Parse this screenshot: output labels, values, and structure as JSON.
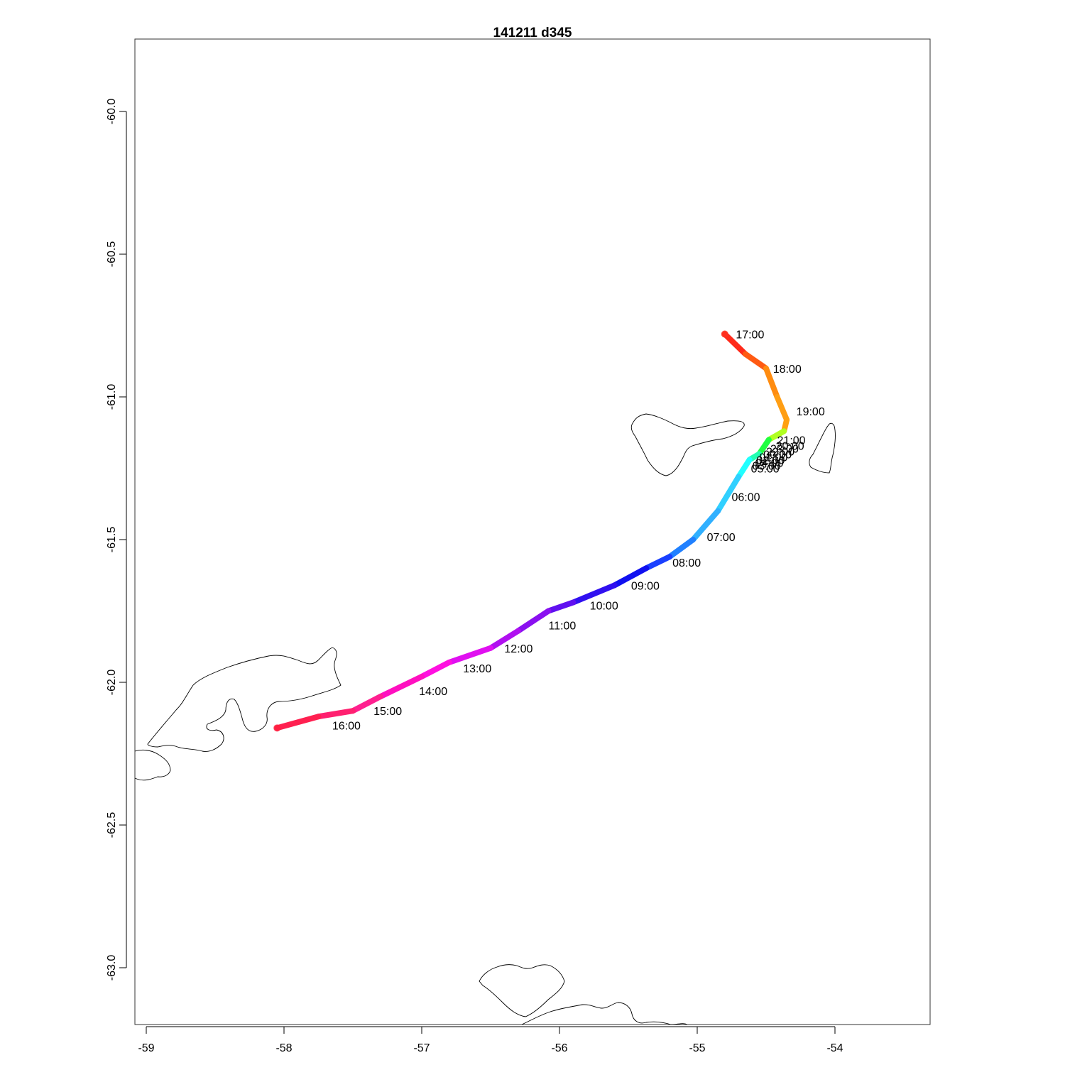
{
  "title": "141211   d345",
  "x_axis": {
    "ticks": [
      -59,
      -58,
      -57,
      -56,
      -55,
      -54
    ],
    "tick_labels": [
      "-59",
      "-58",
      "-57",
      "-56",
      "-55",
      "-54"
    ],
    "range": [
      -59.08,
      -53.4
    ]
  },
  "y_axis": {
    "ticks": [
      -60.0,
      -60.5,
      -61.0,
      -61.5,
      -62.0,
      -62.5,
      -63.0
    ],
    "tick_labels": [
      "-60.0",
      "-60.5",
      "-61.0",
      "-61.5",
      "-62.0",
      "-62.5",
      "-63.0"
    ],
    "range": [
      -63.2,
      -59.75
    ]
  },
  "track": [
    {
      "lon": -54.8,
      "lat": -60.78
    },
    {
      "lon": -54.65,
      "lat": -60.85
    },
    {
      "lon": -54.5,
      "lat": -60.9
    },
    {
      "lon": -54.42,
      "lat": -61.0
    },
    {
      "lon": -54.35,
      "lat": -61.08
    },
    {
      "lon": -54.37,
      "lat": -61.12
    },
    {
      "lon": -54.48,
      "lat": -61.15
    },
    {
      "lon": -54.55,
      "lat": -61.2
    },
    {
      "lon": -54.62,
      "lat": -61.22
    },
    {
      "lon": -54.7,
      "lat": -61.28
    },
    {
      "lon": -54.85,
      "lat": -61.4
    },
    {
      "lon": -55.03,
      "lat": -61.5
    },
    {
      "lon": -55.2,
      "lat": -61.56
    },
    {
      "lon": -55.37,
      "lat": -61.6
    },
    {
      "lon": -55.6,
      "lat": -61.66
    },
    {
      "lon": -55.9,
      "lat": -61.72
    },
    {
      "lon": -56.08,
      "lat": -61.75
    },
    {
      "lon": -56.3,
      "lat": -61.82
    },
    {
      "lon": -56.5,
      "lat": -61.88
    },
    {
      "lon": -56.8,
      "lat": -61.93
    },
    {
      "lon": -57.0,
      "lat": -61.98
    },
    {
      "lon": -57.3,
      "lat": -62.05
    },
    {
      "lon": -57.5,
      "lat": -62.1
    },
    {
      "lon": -57.75,
      "lat": -62.12
    },
    {
      "lon": -58.05,
      "lat": -62.16
    }
  ],
  "track_colors": [
    "#ff2a1a",
    "#ff5a12",
    "#ff8c10",
    "#ff9e14",
    "#ffa010",
    "#b0ff20",
    "#20ff40",
    "#20ffb0",
    "#20ffff",
    "#30d0ff",
    "#30b0ff",
    "#2080ff",
    "#1a40ff",
    "#1010f0",
    "#3010f0",
    "#6010f0",
    "#8a10f0",
    "#b010f0",
    "#e010f0",
    "#ff10e0",
    "#ff10c0",
    "#ff2090",
    "#ff2070",
    "#ff2050",
    "#ff2040"
  ],
  "time_labels": [
    {
      "text": "17:00",
      "lon": -54.72,
      "lat": -60.78
    },
    {
      "text": "18:00",
      "lon": -54.45,
      "lat": -60.9
    },
    {
      "text": "19:00",
      "lon": -54.28,
      "lat": -61.05
    },
    {
      "text": "20:00",
      "lon": -54.43,
      "lat": -61.17
    },
    {
      "text": "21:00",
      "lon": -54.42,
      "lat": -61.15
    },
    {
      "text": "22:00",
      "lon": -54.5,
      "lat": -61.19
    },
    {
      "text": "23:00",
      "lon": -54.47,
      "lat": -61.18
    },
    {
      "text": "00:00",
      "lon": -54.52,
      "lat": -61.2
    },
    {
      "text": "01:00",
      "lon": -54.55,
      "lat": -61.21
    },
    {
      "text": "02:00",
      "lon": -54.57,
      "lat": -61.22
    },
    {
      "text": "03:00",
      "lon": -54.6,
      "lat": -61.24
    },
    {
      "text": "04:00",
      "lon": -54.58,
      "lat": -61.23
    },
    {
      "text": "05:00",
      "lon": -54.61,
      "lat": -61.25
    },
    {
      "text": "06:00",
      "lon": -54.75,
      "lat": -61.35
    },
    {
      "text": "07:00",
      "lon": -54.93,
      "lat": -61.49
    },
    {
      "text": "08:00",
      "lon": -55.18,
      "lat": -61.58
    },
    {
      "text": "09:00",
      "lon": -55.48,
      "lat": -61.66
    },
    {
      "text": "10:00",
      "lon": -55.78,
      "lat": -61.73
    },
    {
      "text": "11:00",
      "lon": -56.08,
      "lat": -61.8
    },
    {
      "text": "12:00",
      "lon": -56.4,
      "lat": -61.88
    },
    {
      "text": "13:00",
      "lon": -56.7,
      "lat": -61.95
    },
    {
      "text": "14:00",
      "lon": -57.02,
      "lat": -62.03
    },
    {
      "text": "15:00",
      "lon": -57.35,
      "lat": -62.1
    },
    {
      "text": "16:00",
      "lon": -57.65,
      "lat": -62.15
    }
  ],
  "colors": {
    "coastline": "#000000",
    "frame": "#333333"
  }
}
